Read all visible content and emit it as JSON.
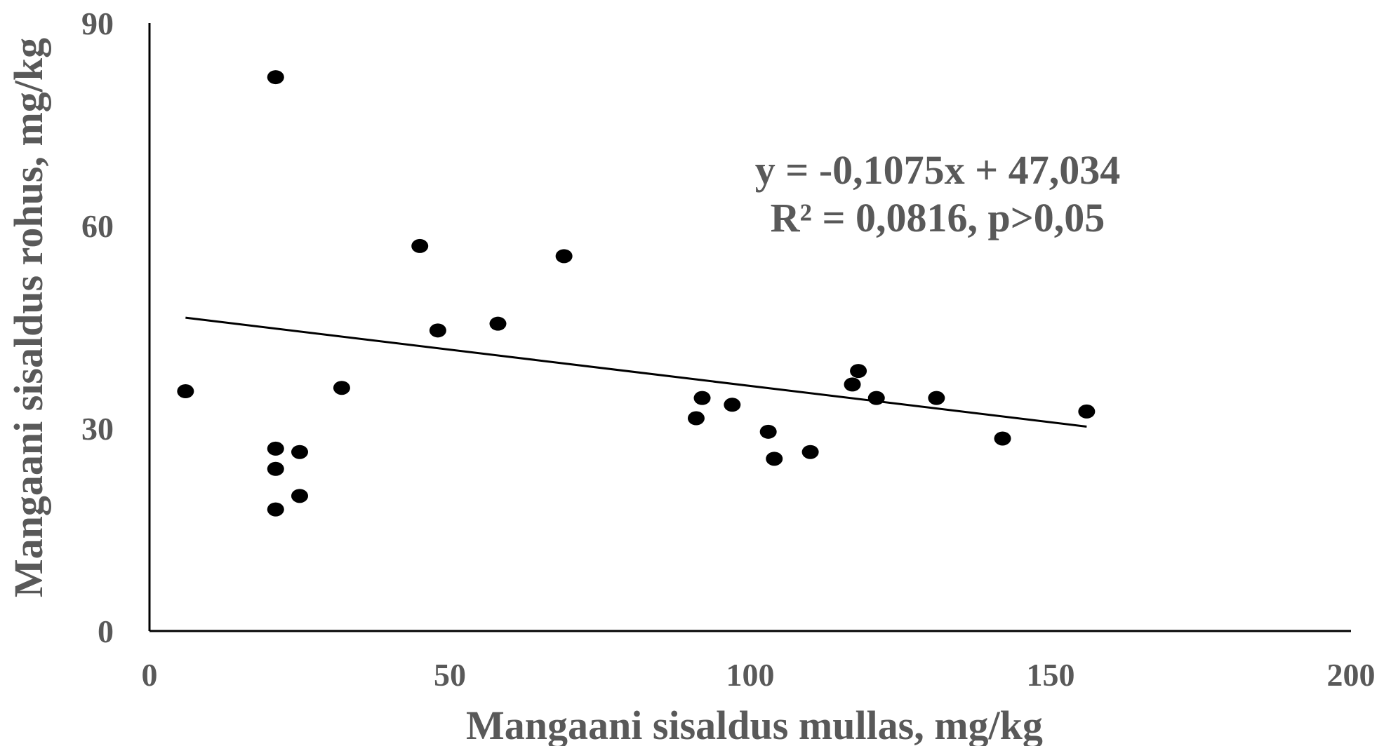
{
  "chart_data": {
    "type": "scatter",
    "title": "",
    "xlabel": "Mangaani sisaldus mullas, mg/kg",
    "ylabel": "Mangaani sisaldus rohus, mg/kg",
    "xlim": [
      0,
      200
    ],
    "ylim": [
      0,
      90
    ],
    "x_ticks": [
      "0",
      "50",
      "100",
      "150",
      "200"
    ],
    "y_ticks": [
      "0",
      "30",
      "60",
      "90"
    ],
    "grid": false,
    "marker_color": "#000000",
    "line_color": "#000000",
    "axis_color": "#000000",
    "text_color": "#595959",
    "series": [
      {
        "points": [
          {
            "x": 6,
            "y": 35.5
          },
          {
            "x": 21,
            "y": 82
          },
          {
            "x": 21,
            "y": 27
          },
          {
            "x": 21,
            "y": 24
          },
          {
            "x": 21,
            "y": 18
          },
          {
            "x": 25,
            "y": 26.5
          },
          {
            "x": 25,
            "y": 20
          },
          {
            "x": 32,
            "y": 36
          },
          {
            "x": 45,
            "y": 57
          },
          {
            "x": 48,
            "y": 44.5
          },
          {
            "x": 58,
            "y": 45.5
          },
          {
            "x": 69,
            "y": 55.5
          },
          {
            "x": 91,
            "y": 31.5
          },
          {
            "x": 92,
            "y": 34.5
          },
          {
            "x": 97,
            "y": 33.5
          },
          {
            "x": 103,
            "y": 29.5
          },
          {
            "x": 104,
            "y": 25.5
          },
          {
            "x": 110,
            "y": 26.5
          },
          {
            "x": 117,
            "y": 36.5
          },
          {
            "x": 118,
            "y": 38.5
          },
          {
            "x": 121,
            "y": 34.5
          },
          {
            "x": 131,
            "y": 34.5
          },
          {
            "x": 142,
            "y": 28.5
          },
          {
            "x": 156,
            "y": 32.5
          }
        ]
      }
    ],
    "trendline": {
      "slope": -0.1075,
      "intercept": 47.034,
      "x_range": [
        6,
        156
      ]
    },
    "annotations": {
      "equation": "y = -0,1075x + 47,034",
      "r_squared": "R² = 0,0816, p>0,05"
    }
  }
}
